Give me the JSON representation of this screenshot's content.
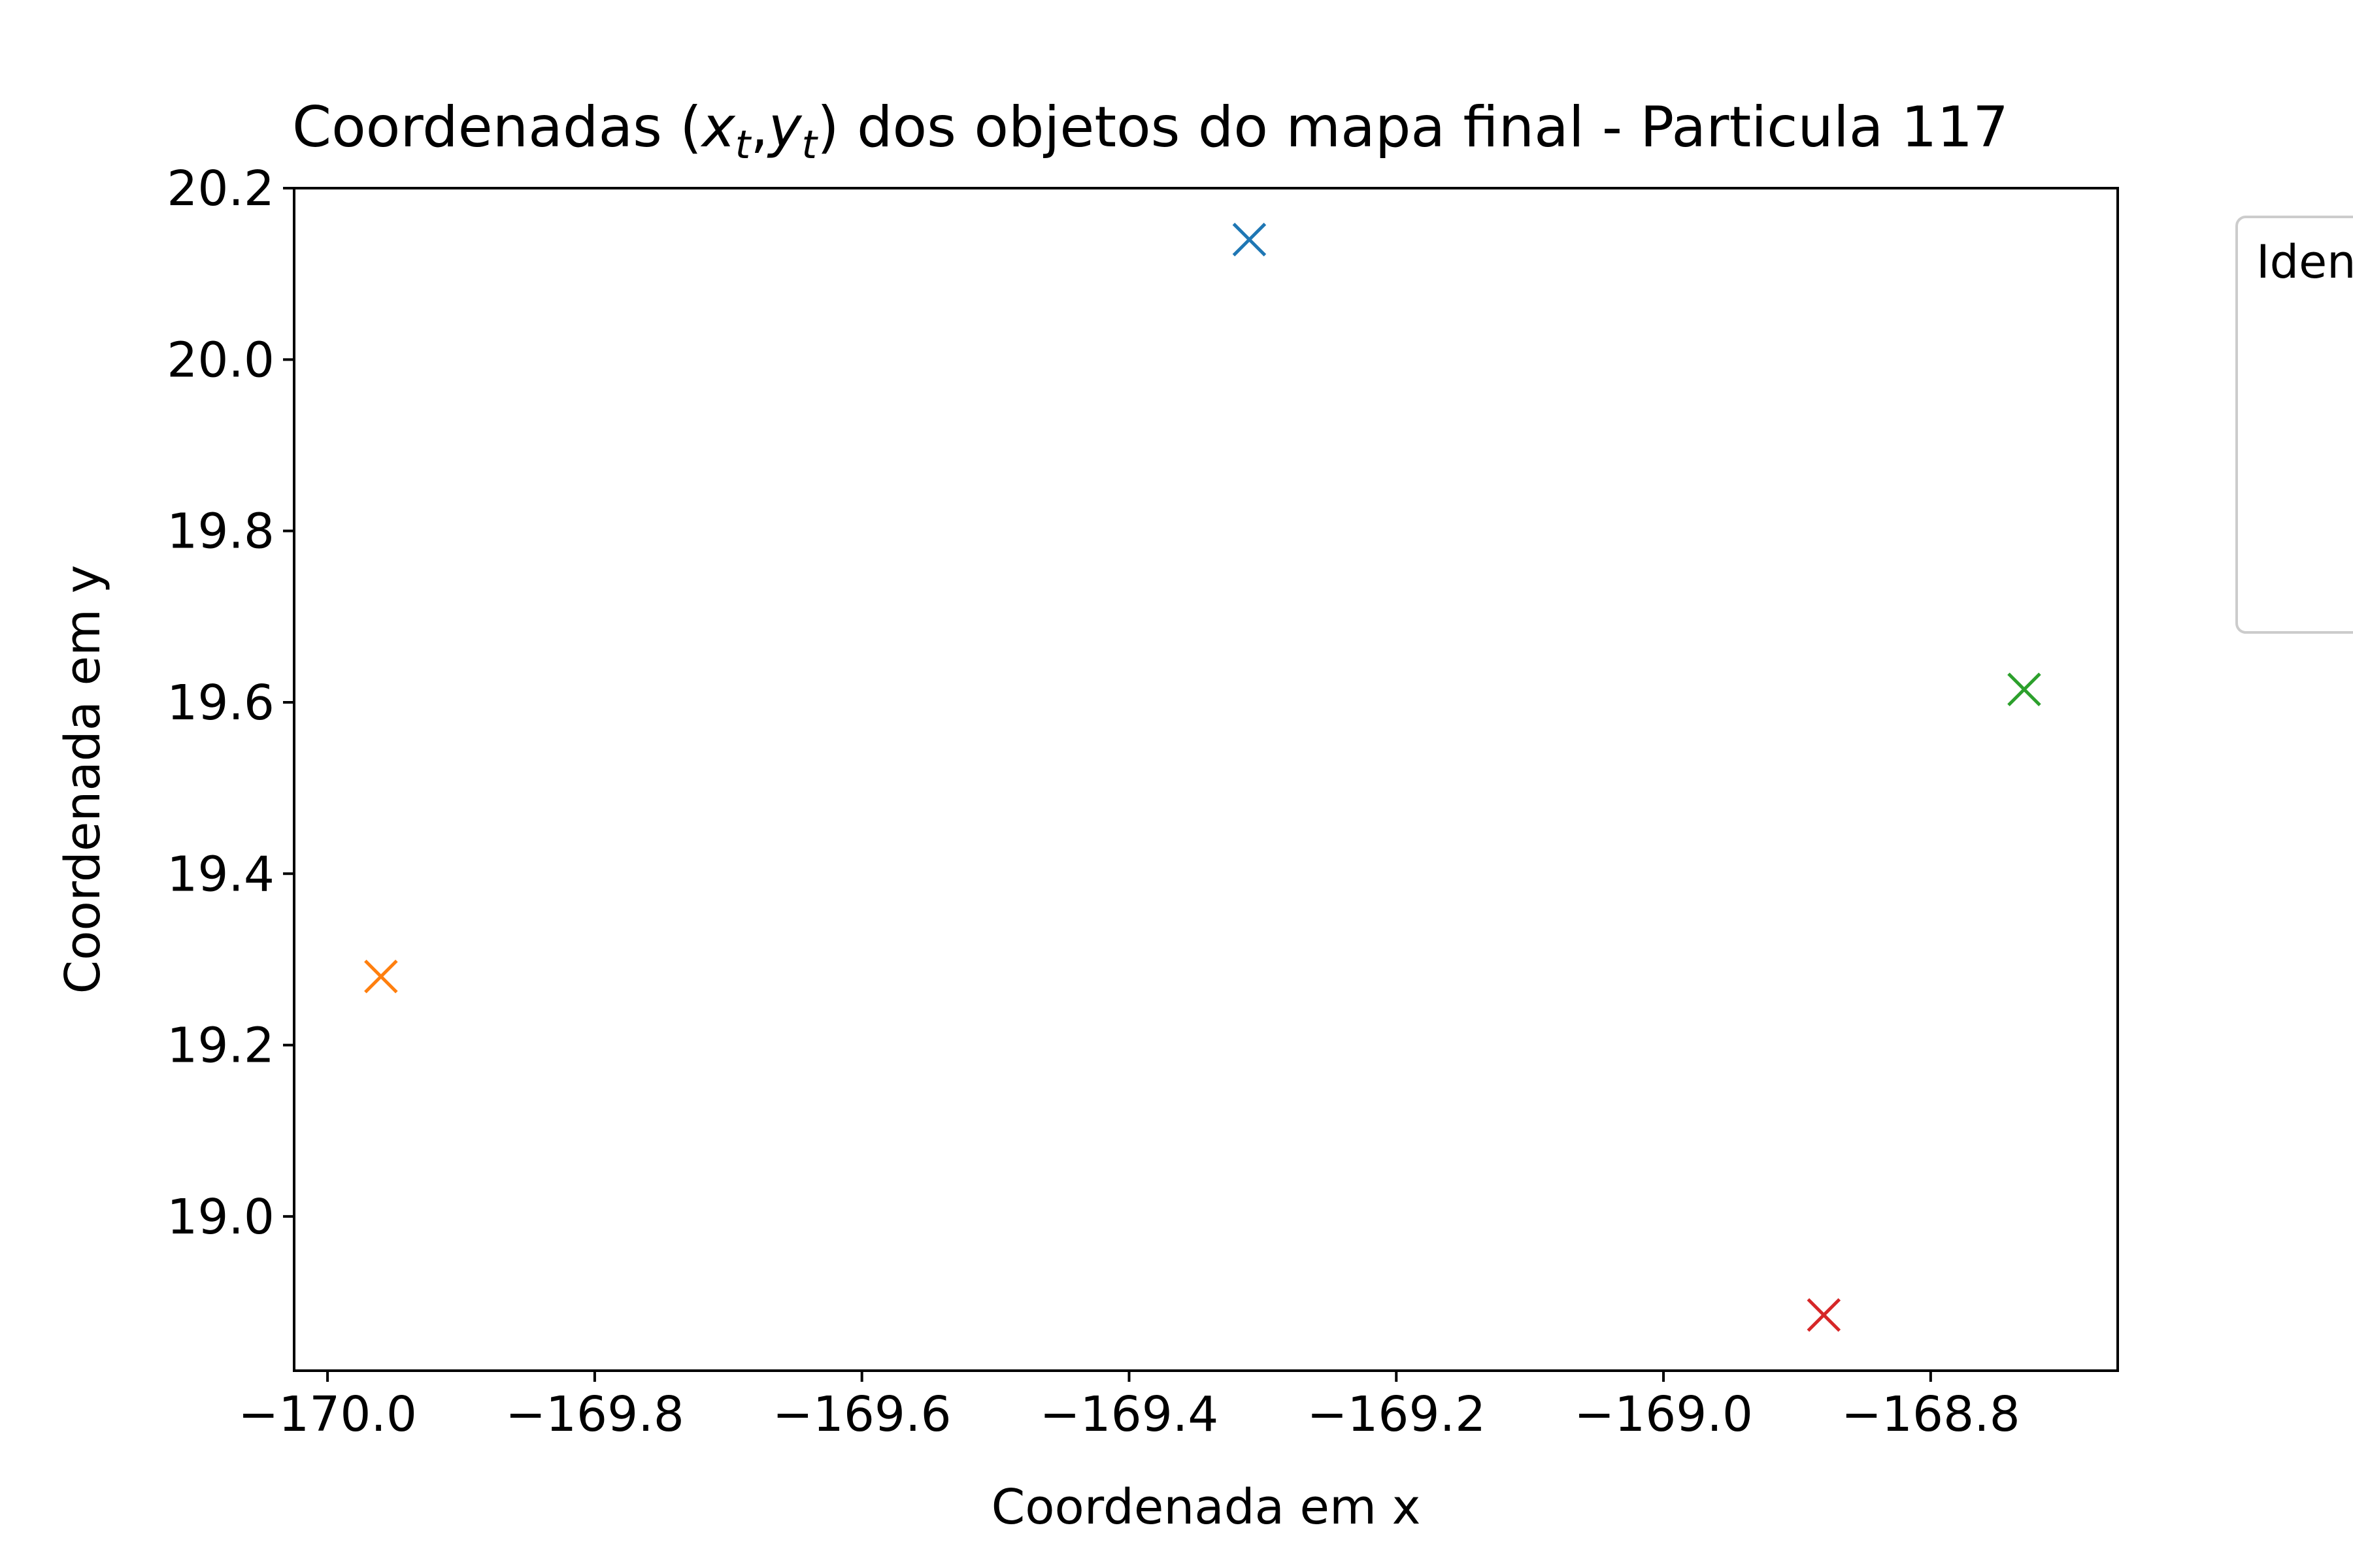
{
  "chart_data": {
    "type": "scatter",
    "title": {
      "prefix": "Coordenadas (",
      "x_var": "x",
      "x_sub": "t",
      "separator": ",",
      "y_var": "y",
      "y_sub": "t",
      "suffix": ") dos objetos do mapa final - Particula 117"
    },
    "xlabel": "Coordenada em x",
    "ylabel": "Coordenada em y",
    "xlim": [
      -170.025,
      -168.66
    ],
    "ylim": [
      18.82,
      20.2
    ],
    "xticks": [
      -170.0,
      -169.8,
      -169.6,
      -169.4,
      -169.2,
      -169.0,
      -168.8
    ],
    "xtick_labels": [
      "−170.0",
      "−169.8",
      "−169.6",
      "−169.4",
      "−169.2",
      "−169.0",
      "−168.8"
    ],
    "yticks": [
      19.0,
      19.2,
      19.4,
      19.6,
      19.8,
      20.0,
      20.2
    ],
    "ytick_labels": [
      "19.0",
      "19.2",
      "19.4",
      "19.6",
      "19.8",
      "20.0",
      "20.2"
    ],
    "marker": "x",
    "grid": false,
    "points": [
      {
        "x": -169.31,
        "y": 20.14,
        "color": "#1f77b4"
      },
      {
        "x": -169.96,
        "y": 19.28,
        "color": "#ff7f0e"
      },
      {
        "x": -168.73,
        "y": 19.615,
        "color": "#2ca02c"
      },
      {
        "x": -168.88,
        "y": 18.885,
        "color": "#d62728"
      }
    ],
    "legend": {
      "placement": "outside-right",
      "title": "Iden"
    }
  }
}
